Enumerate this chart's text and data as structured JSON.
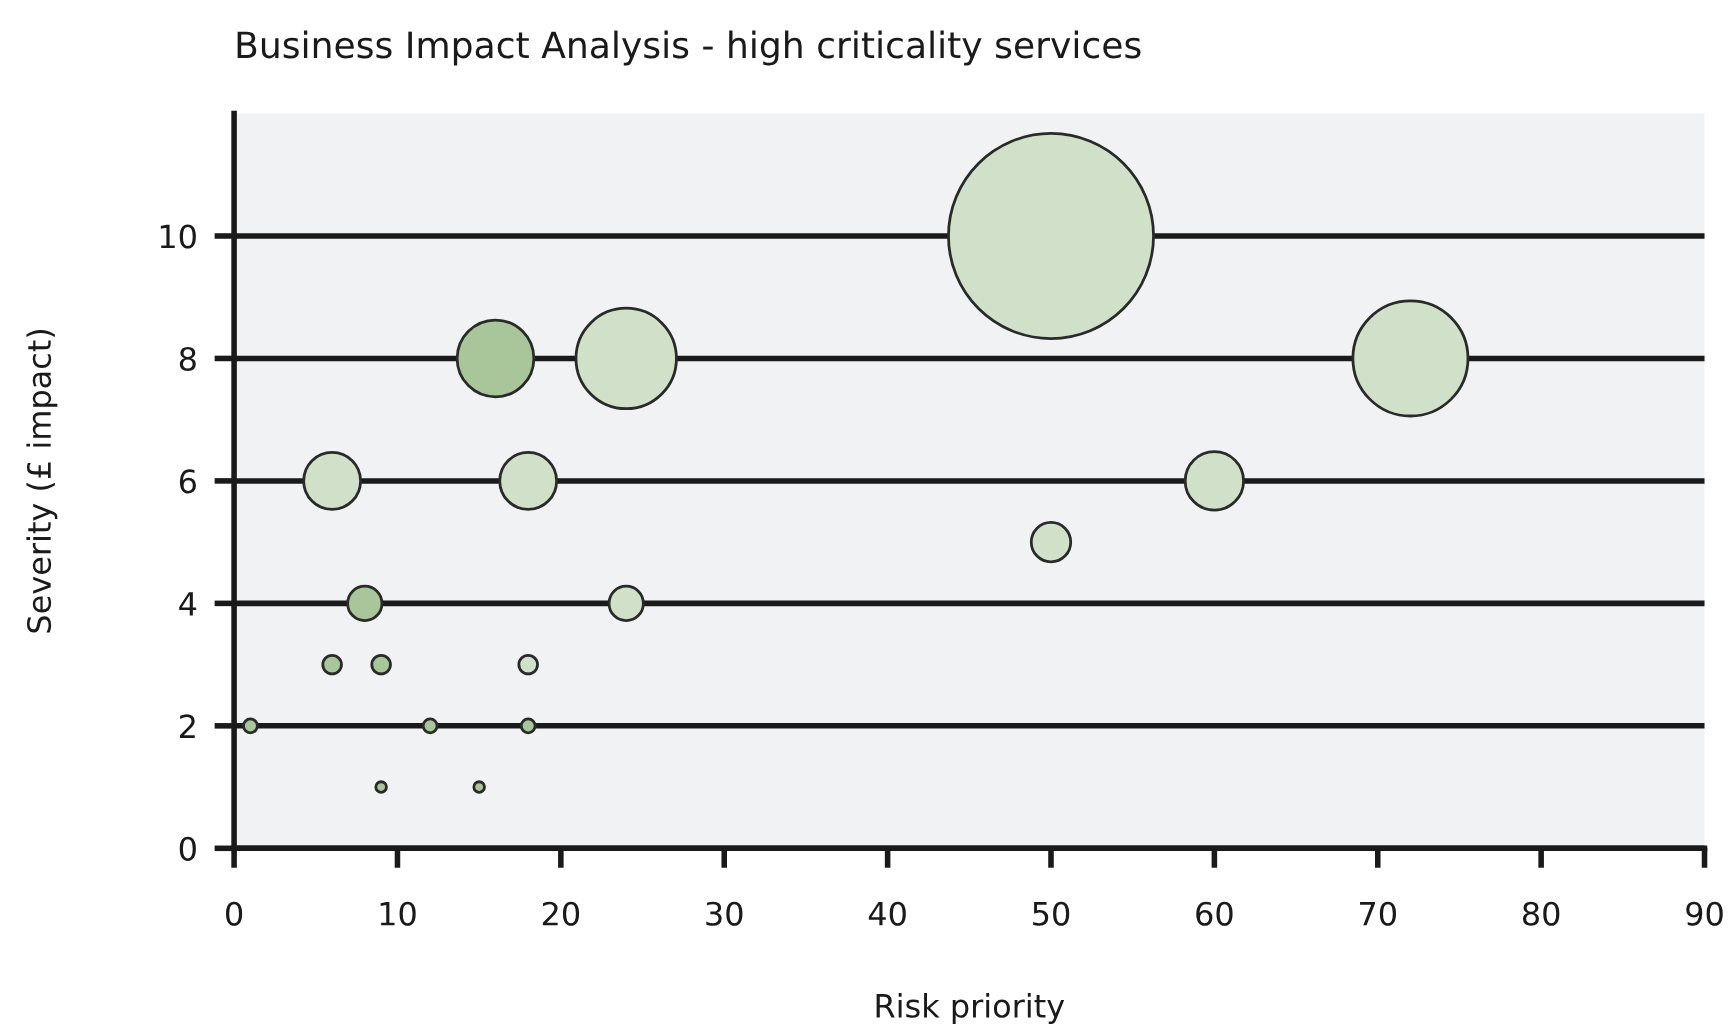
{
  "chart_data": {
    "type": "bubble",
    "title": "Business Impact Analysis - high criticality services",
    "xlabel": "Risk priority",
    "ylabel": "Severity (£ impact)",
    "xlim": [
      0,
      90
    ],
    "xticks": [
      0,
      10,
      20,
      30,
      40,
      50,
      60,
      70,
      80,
      90
    ],
    "ylim": [
      0,
      12
    ],
    "yticks": [
      0,
      2,
      4,
      6,
      8,
      10
    ],
    "grid": "y",
    "series": [
      {
        "color": "#a9c69a",
        "x": [
          1,
          6,
          9,
          12,
          18,
          9,
          15,
          8,
          16
        ],
        "values": [
          2,
          3,
          3,
          2,
          2,
          1,
          1,
          4,
          8
        ],
        "sizes": [
          0.0046,
          0.0083,
          0.0083,
          0.0046,
          0.0046,
          0.0027,
          0.0027,
          0.028,
          0.14
        ]
      },
      {
        "color": "#d0e0c9",
        "x": [
          18,
          24,
          6,
          18,
          24,
          50,
          72,
          60,
          50
        ],
        "values": [
          3,
          4,
          6,
          6,
          8,
          10,
          8,
          6,
          5
        ],
        "sizes": [
          0.0083,
          0.028,
          0.077,
          0.077,
          0.24,
          1,
          0.315,
          0.081,
          0.037
        ]
      }
    ]
  }
}
